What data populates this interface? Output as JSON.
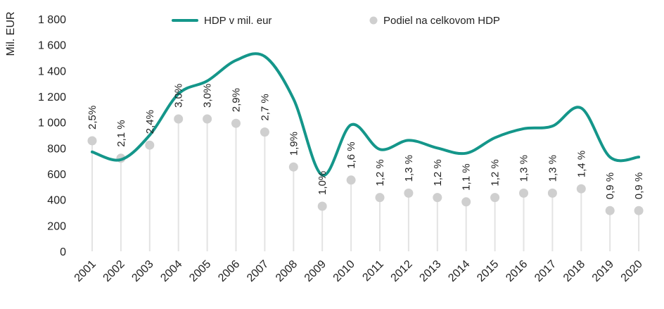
{
  "chart_data": {
    "type": "line",
    "ylabel": "Mil. EUR",
    "ylim": [
      0,
      1800
    ],
    "yticks": [
      0,
      200,
      400,
      600,
      800,
      1000,
      1200,
      1400,
      1600,
      1800
    ],
    "ytick_labels": [
      "0",
      "200",
      "400",
      "600",
      "800",
      "1 000",
      "1 200",
      "1 400",
      "1 600",
      "1 800"
    ],
    "categories": [
      "2001",
      "2002",
      "2003",
      "2004",
      "2005",
      "2006",
      "2007",
      "2008",
      "2009",
      "2010",
      "2011",
      "2012",
      "2013",
      "2014",
      "2015",
      "2016",
      "2017",
      "2018",
      "2019",
      "2020"
    ],
    "legend_position": "top",
    "series": [
      {
        "name": "HDP v mil. eur",
        "type": "line",
        "color": "#14968a",
        "values": [
          770,
          710,
          900,
          1220,
          1320,
          1480,
          1510,
          1180,
          590,
          980,
          790,
          860,
          800,
          760,
          880,
          950,
          970,
          1110,
          730,
          730
        ]
      },
      {
        "name": "Podiel na celkovom HDP",
        "type": "lollipop",
        "color": "#cfcfcf",
        "stem_color": "#e3e3e3",
        "values": [
          2.5,
          2.1,
          2.4,
          3.0,
          3.0,
          2.9,
          2.7,
          1.9,
          1.0,
          1.6,
          1.2,
          1.3,
          1.2,
          1.1,
          1.2,
          1.3,
          1.3,
          1.4,
          0.9,
          0.9
        ],
        "labels": [
          "2,5%",
          "2,1 %",
          "2,4%",
          "3,0%",
          "3,0%",
          "2,9%",
          "2,7 %",
          "1,9%",
          "1,0%",
          "1,6 %",
          "1,2 %",
          "1,3 %",
          "1,2 %",
          "1,1 %",
          "1,2 %",
          "1,3 %",
          "1,3 %",
          "1,4 %",
          "0,9 %",
          "0,9 %"
        ]
      }
    ]
  }
}
